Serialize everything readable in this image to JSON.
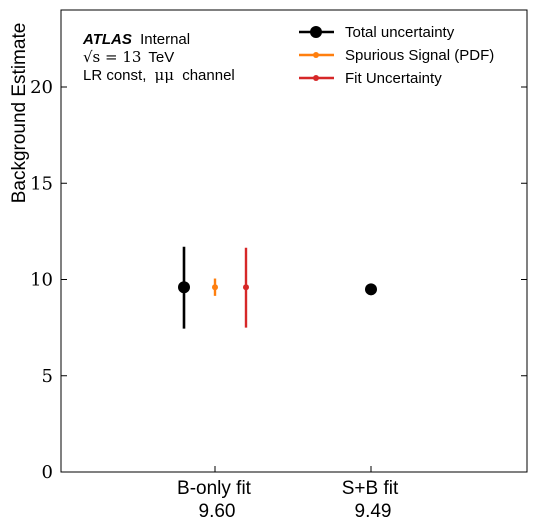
{
  "chart_data": {
    "type": "scatter",
    "ylabel": "Background Estimate",
    "ylim": [
      0,
      24
    ],
    "yticks": [
      0,
      5,
      10,
      15,
      20
    ],
    "categories": [
      {
        "label": "B-only fit",
        "value_label": "9.60"
      },
      {
        "label": "S+B fit",
        "value_label": "9.49"
      }
    ],
    "annotations": {
      "experiment": "ATLAS",
      "status": "Internal",
      "energy_prefix": "√s = 13",
      "energy_unit": "TeV",
      "selection_prefix": "LR const,",
      "channel_symbol": "μμ",
      "selection_suffix": "channel"
    },
    "legend_position": "top-right",
    "series": [
      {
        "name": "Total uncertainty",
        "color": "#000000",
        "values": [
          {
            "x": "B-only fit",
            "y": 9.6,
            "yerr": [
              2.15,
              2.1
            ]
          },
          {
            "x": "S+B fit",
            "y": 9.49,
            "yerr": [
              0,
              0
            ]
          }
        ]
      },
      {
        "name": "Spurious Signal (PDF)",
        "color": "#ff7f0e",
        "values": [
          {
            "x": "B-only fit",
            "y": 9.6,
            "yerr": [
              0.45,
              0.45
            ]
          }
        ]
      },
      {
        "name": "Fit Uncertainty",
        "color": "#d62728",
        "values": [
          {
            "x": "B-only fit",
            "y": 9.6,
            "yerr": [
              2.1,
              2.05
            ]
          }
        ]
      }
    ]
  }
}
